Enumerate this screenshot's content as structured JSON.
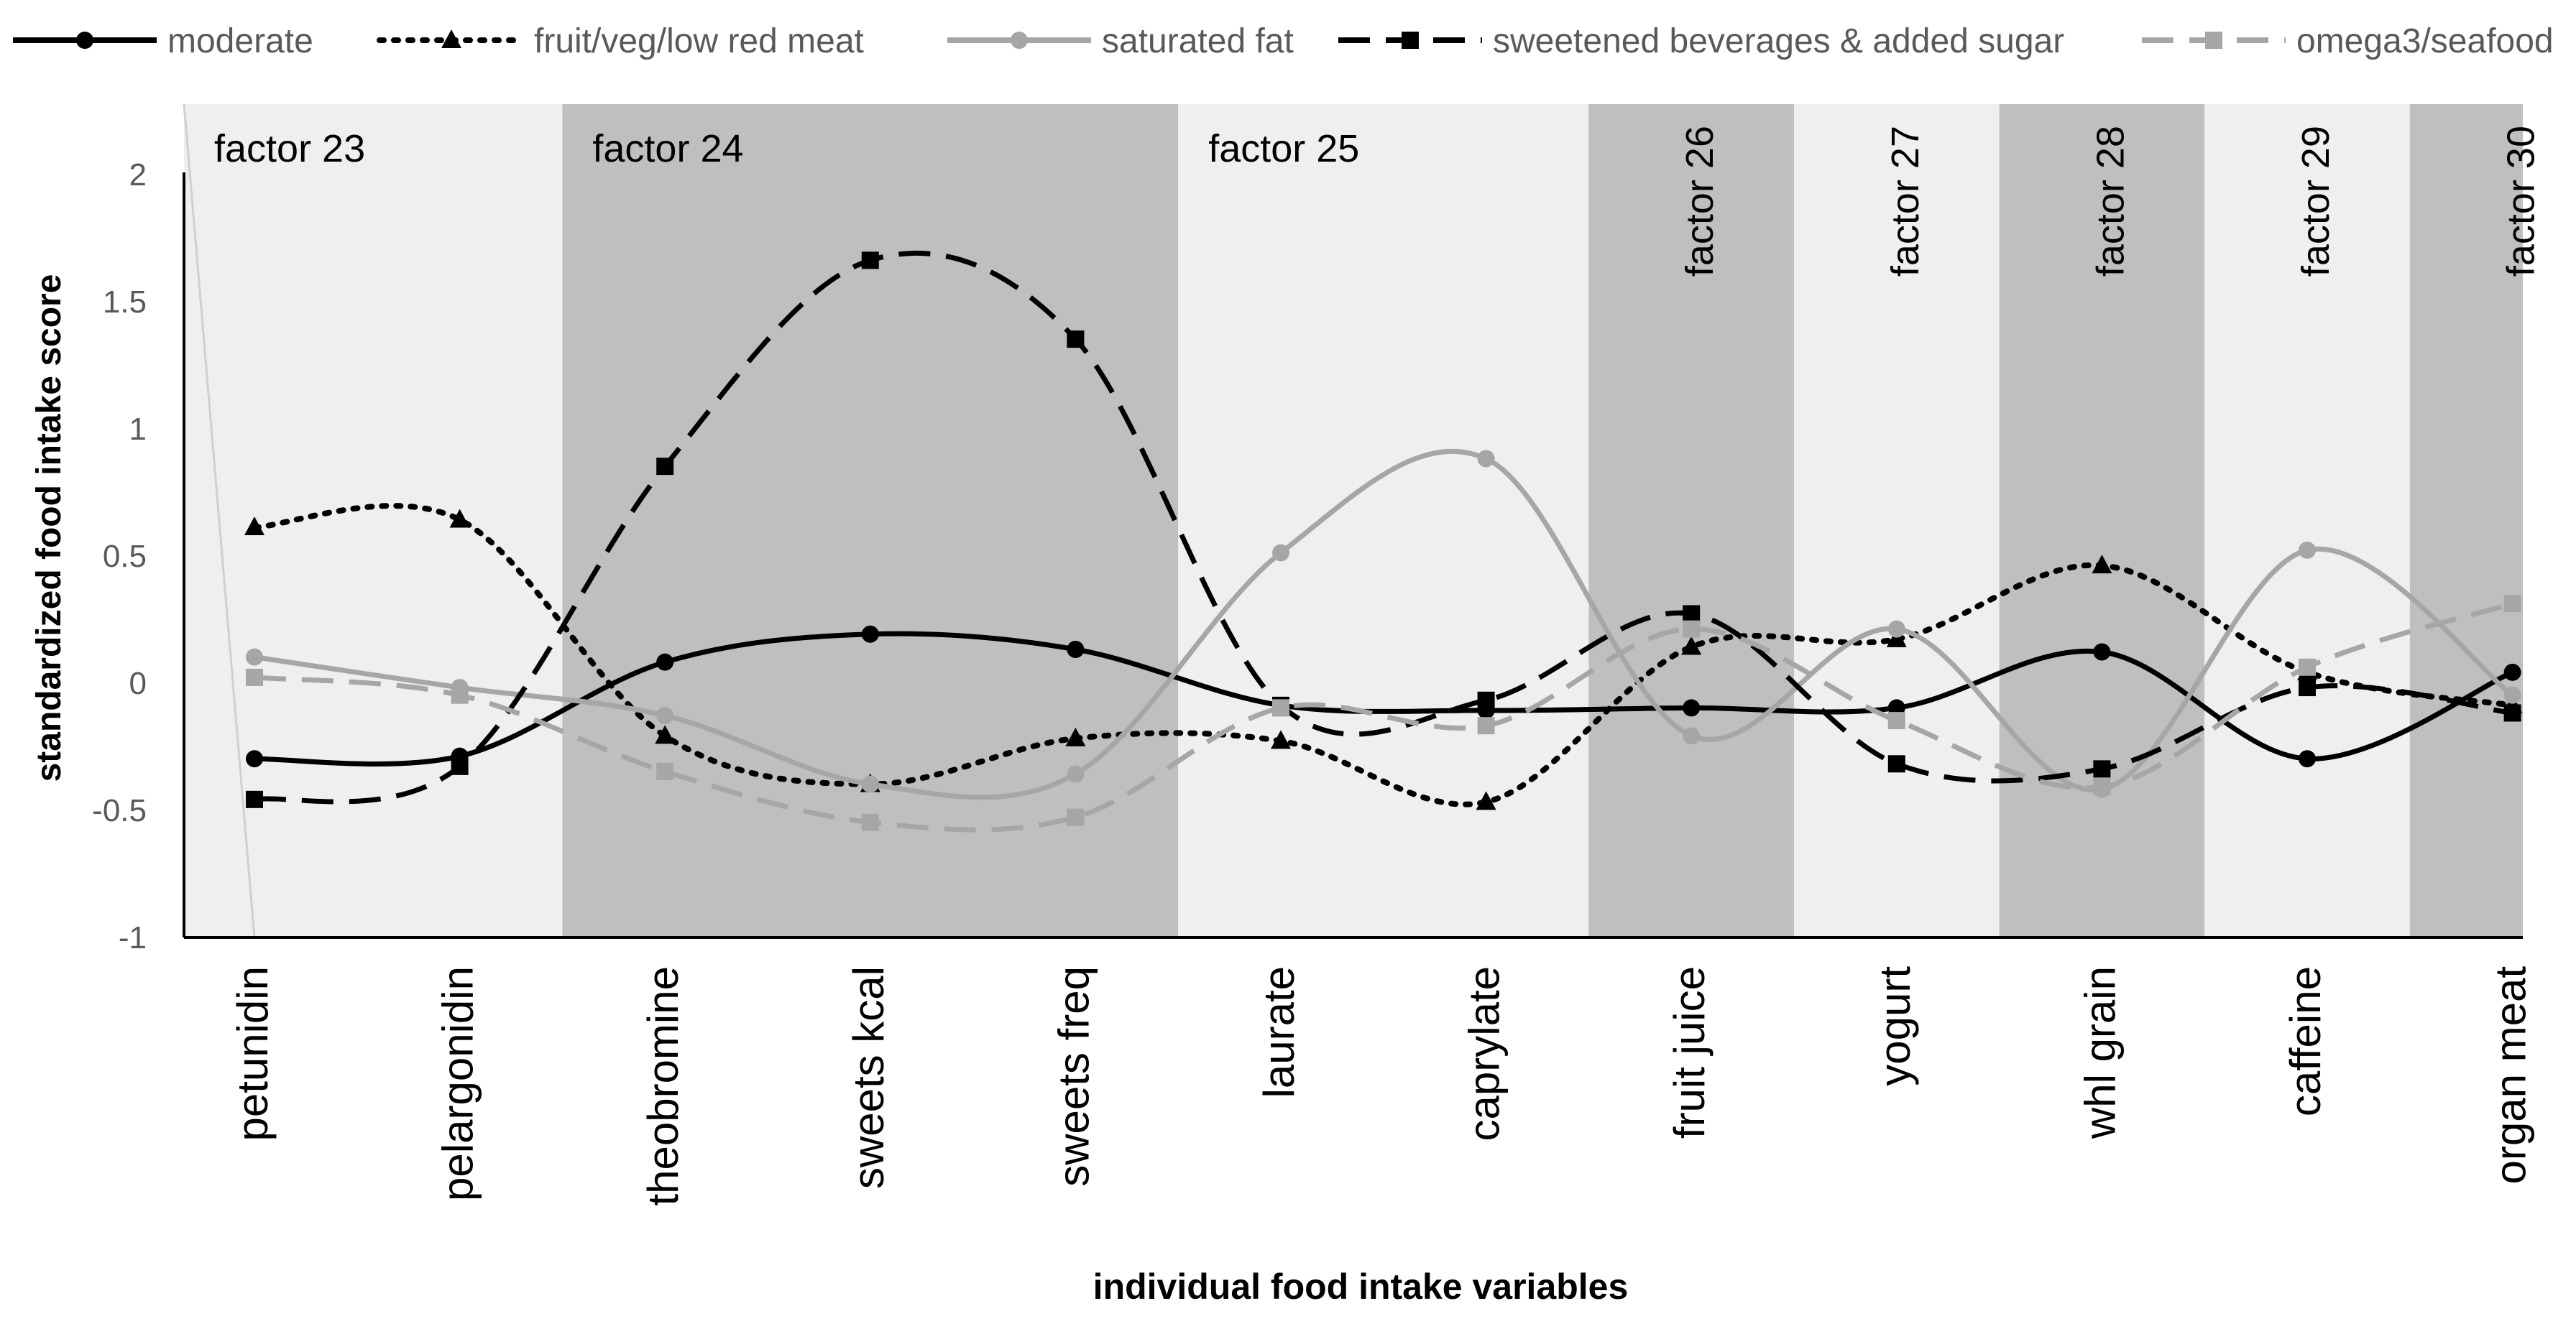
{
  "chart_data": {
    "type": "line",
    "xlabel": "individual food intake variables",
    "ylabel": "standardized food intake score",
    "ylim": [
      -1,
      2
    ],
    "yticks": [
      {
        "value": -1,
        "label": "-1"
      },
      {
        "value": -0.5,
        "label": "-0.5"
      },
      {
        "value": 0,
        "label": "0"
      },
      {
        "value": 0.5,
        "label": "0.5"
      },
      {
        "value": 1,
        "label": "1"
      },
      {
        "value": 1.5,
        "label": "1.5"
      },
      {
        "value": 2,
        "label": "2"
      }
    ],
    "categories": [
      "petunidin",
      "pelargonidin",
      "theobromine",
      "sweets kcal",
      "sweets freq",
      "laurate",
      "caprylate",
      "fruit juice",
      "yogurt",
      "whl grain",
      "caffeine",
      "organ meat"
    ],
    "factors": [
      {
        "label": "factor 23",
        "start": 0,
        "end": 1,
        "shade": "#efefef",
        "vertical": false
      },
      {
        "label": "factor 24",
        "start": 2,
        "end": 4,
        "shade": "#bfbfbf",
        "vertical": false
      },
      {
        "label": "factor 25",
        "start": 5,
        "end": 6,
        "shade": "#efefef",
        "vertical": false
      },
      {
        "label": "factor 26",
        "start": 7,
        "end": 7,
        "shade": "#bfbfbf",
        "vertical": true
      },
      {
        "label": "factor 27",
        "start": 8,
        "end": 8,
        "shade": "#efefef",
        "vertical": true
      },
      {
        "label": "factor 28",
        "start": 9,
        "end": 9,
        "shade": "#bfbfbf",
        "vertical": true
      },
      {
        "label": "factor 29",
        "start": 10,
        "end": 10,
        "shade": "#efefef",
        "vertical": true
      },
      {
        "label": "factor 30",
        "start": 11,
        "end": 11,
        "shade": "#bfbfbf",
        "vertical": true
      }
    ],
    "series": [
      {
        "name": "moderate",
        "color": "#000000",
        "dash": "solid",
        "marker": "circle",
        "values": [
          -0.3,
          -0.29,
          0.08,
          0.19,
          0.13,
          -0.09,
          -0.11,
          -0.1,
          -0.1,
          0.12,
          -0.3,
          0.04
        ]
      },
      {
        "name": "fruit/veg/low red meat",
        "color": "#000000",
        "dash": "dotted",
        "marker": "triangle",
        "values": [
          0.61,
          0.64,
          -0.21,
          -0.4,
          -0.22,
          -0.23,
          -0.47,
          0.14,
          0.17,
          0.46,
          0.04,
          -0.09
        ]
      },
      {
        "name": "saturated fat",
        "color": "#a6a6a6",
        "dash": "solid",
        "marker": "circle",
        "values": [
          0.1,
          -0.02,
          -0.13,
          -0.4,
          -0.36,
          0.51,
          0.88,
          -0.21,
          0.21,
          -0.42,
          0.52,
          -0.05
        ]
      },
      {
        "name": "sweetened beverages & added sugar",
        "color": "#000000",
        "dash": "dashed",
        "marker": "square",
        "values": [
          -0.46,
          -0.33,
          0.85,
          1.66,
          1.35,
          -0.09,
          -0.07,
          0.27,
          -0.32,
          -0.34,
          -0.02,
          -0.12
        ]
      },
      {
        "name": "omega3/seafood",
        "color": "#a6a6a6",
        "dash": "dashed",
        "marker": "square",
        "values": [
          0.02,
          -0.05,
          -0.35,
          -0.55,
          -0.53,
          -0.1,
          -0.17,
          0.21,
          -0.15,
          -0.41,
          0.06,
          0.31
        ]
      }
    ],
    "grid": false,
    "legend_position": "top"
  }
}
